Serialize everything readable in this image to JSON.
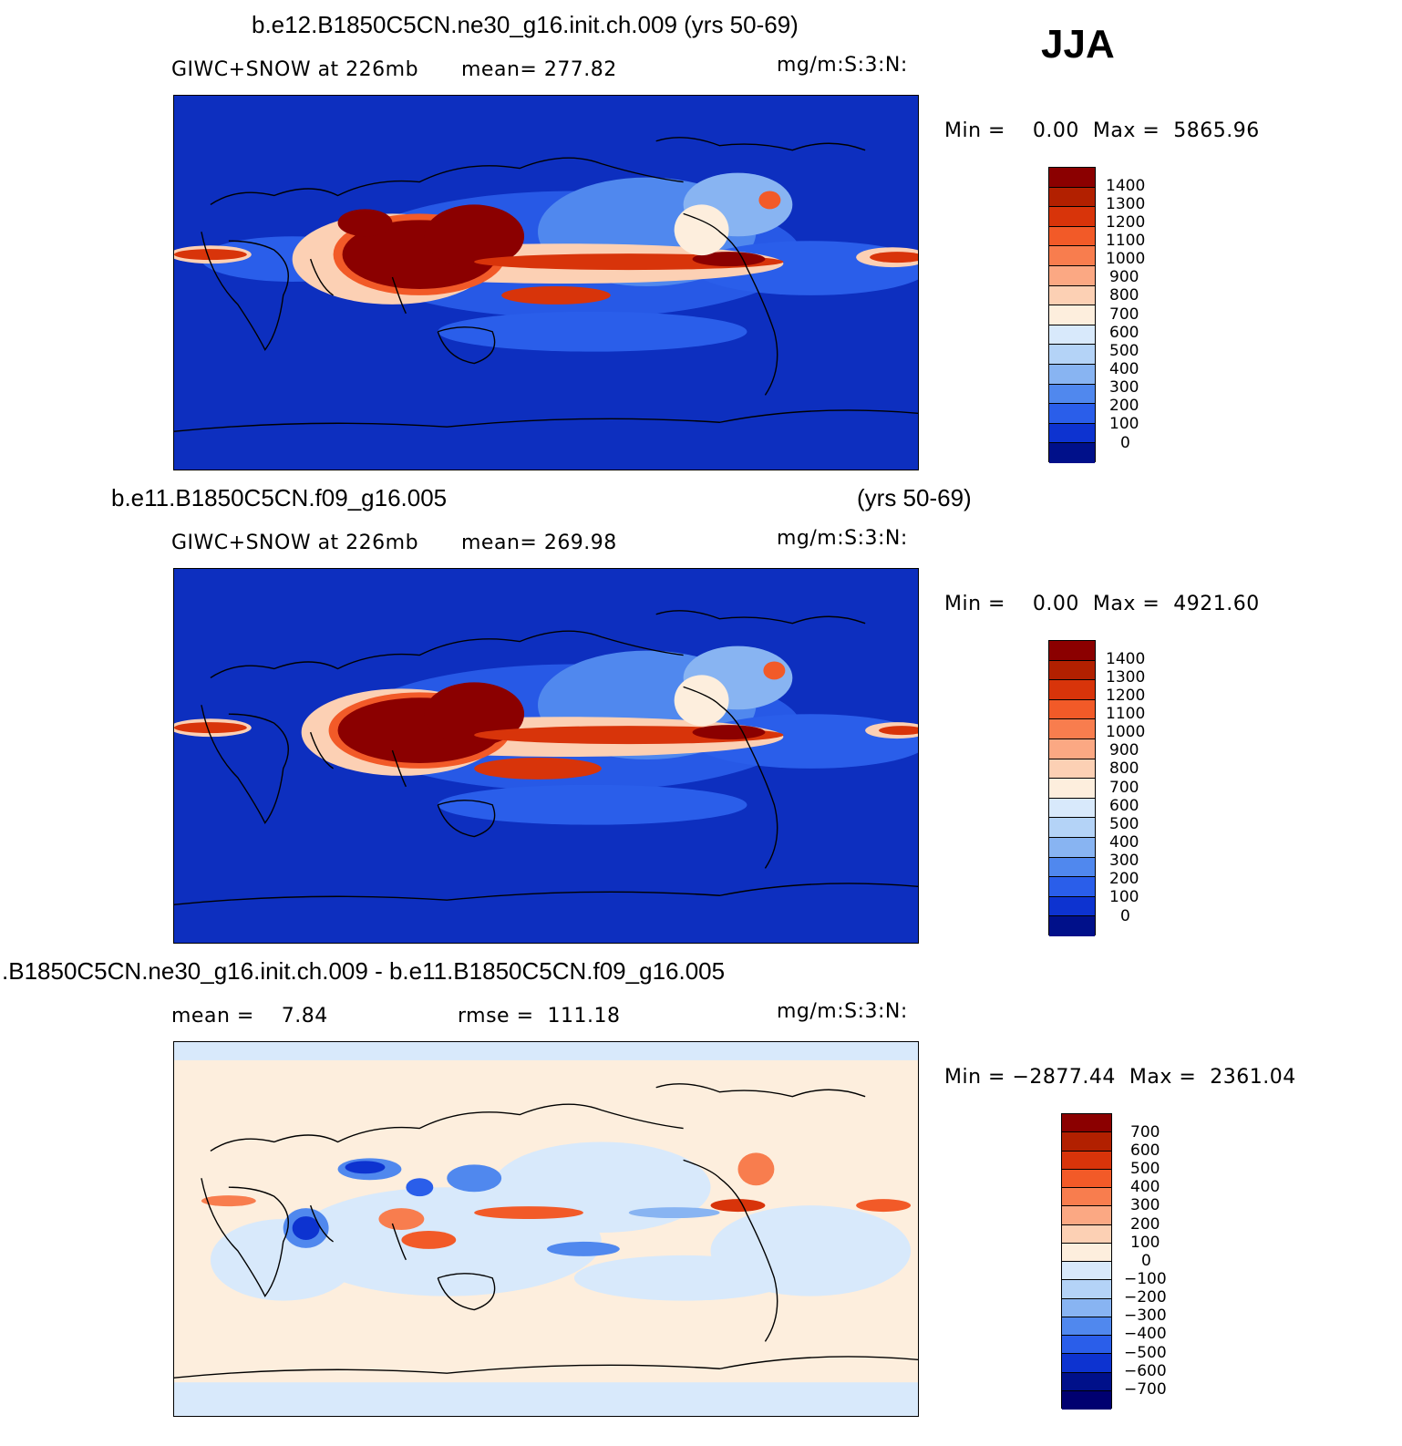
{
  "season": "JJA",
  "panels": [
    {
      "title": "b.e12.B1850C5CN.ne30_g16.init.ch.009 (yrs 50-69)",
      "title_right": "",
      "subtitle_left": "GIWC+SNOW at 226mb",
      "subtitle_mid": "mean= 277.82",
      "units": "mg/m:S:3:N:",
      "minmax": "Min =    0.00  Max =  5865.96",
      "levels": [
        "1400",
        "1300",
        "1200",
        "1100",
        "1000",
        "900",
        "800",
        "700",
        "600",
        "500",
        "400",
        "300",
        "200",
        "100",
        "0"
      ],
      "colors": [
        "#8b0000",
        "#b22000",
        "#d8340a",
        "#f25a28",
        "#f87d4e",
        "#fba883",
        "#fcd0b4",
        "#fdeedd",
        "#d8e9fb",
        "#b4d3f7",
        "#88b4f2",
        "#5088ee",
        "#2a5eea",
        "#0d33d0",
        "#00108a"
      ]
    },
    {
      "title": "b.e11.B1850C5CN.f09_g16.005",
      "title_right": "(yrs 50-69)",
      "subtitle_left": "GIWC+SNOW at 226mb",
      "subtitle_mid": "mean= 269.98",
      "units": "mg/m:S:3:N:",
      "minmax": "Min =    0.00  Max =  4921.60",
      "levels": [
        "1400",
        "1300",
        "1200",
        "1100",
        "1000",
        "900",
        "800",
        "700",
        "600",
        "500",
        "400",
        "300",
        "200",
        "100",
        "0"
      ],
      "colors": [
        "#8b0000",
        "#b22000",
        "#d8340a",
        "#f25a28",
        "#f87d4e",
        "#fba883",
        "#fcd0b4",
        "#fdeedd",
        "#d8e9fb",
        "#b4d3f7",
        "#88b4f2",
        "#5088ee",
        "#2a5eea",
        "#0d33d0",
        "#00108a"
      ]
    },
    {
      "title": ".B1850C5CN.ne30_g16.init.ch.009 - b.e11.B1850C5CN.f09_g16.005",
      "title_right": "",
      "subtitle_left": "mean =    7.84",
      "subtitle_mid": "rmse =  111.18",
      "units": "mg/m:S:3:N:",
      "minmax": "Min = −2877.44  Max =  2361.04",
      "levels": [
        "700",
        "600",
        "500",
        "400",
        "300",
        "200",
        "100",
        "0",
        "−100",
        "−200",
        "−300",
        "−400",
        "−500",
        "−600",
        "−700"
      ],
      "colors": [
        "#8b0000",
        "#b22000",
        "#d8340a",
        "#f25a28",
        "#f87d4e",
        "#fba883",
        "#fcd0b4",
        "#fdeedd",
        "#d8e9fb",
        "#b4d3f7",
        "#88b4f2",
        "#5088ee",
        "#2a5eea",
        "#0d33d0",
        "#00108a",
        "#000070"
      ]
    }
  ]
}
